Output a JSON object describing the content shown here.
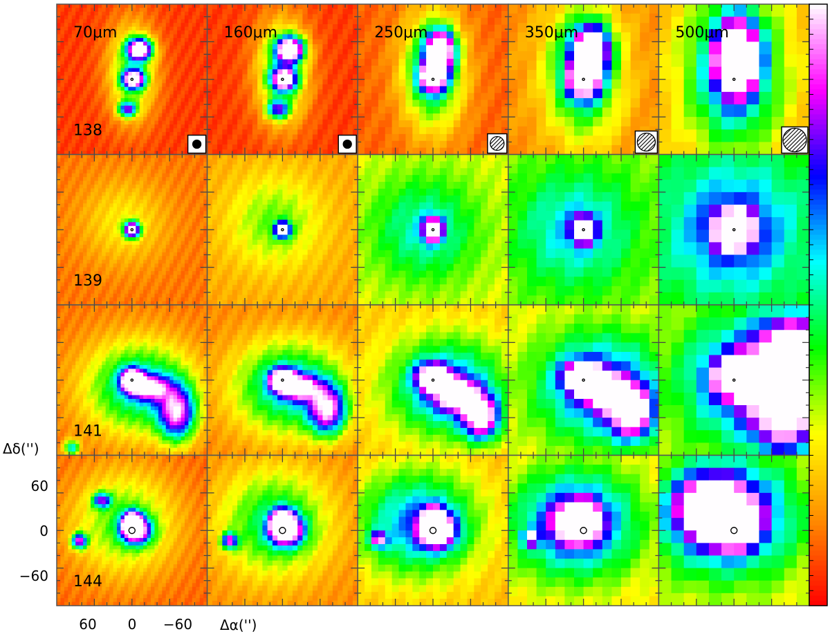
{
  "wavelengths": [
    "70μm",
    "160μm",
    "250μm",
    "350μm",
    "500μm"
  ],
  "sources": [
    "138",
    "139",
    "141",
    "144"
  ],
  "axes": {
    "xlabel": "Δα('')",
    "ylabel": "Δδ('')",
    "xticks": [
      "60",
      "0",
      "−60"
    ],
    "yticks": [
      "60",
      "0",
      "−60"
    ]
  },
  "colorbar": {
    "colors": [
      "#ff0000",
      "#ff8c00",
      "#ffff00",
      "#00ff00",
      "#00ffff",
      "#0000ff",
      "#ff00ff",
      "#ffffff"
    ]
  },
  "beam_icons": [
    "filled-circle-beam-icon",
    "filled-circle-beam-icon",
    "hatched-circle-beam-icon",
    "hatched-circle-beam-icon",
    "hatched-circle-beam-icon"
  ],
  "maps": [
    [
      {
        "bg": 0.06,
        "blobs": [
          [
            0.55,
            0.3,
            0.08,
            0.07,
            1.0
          ],
          [
            0.51,
            0.5,
            0.07,
            0.06,
            0.95
          ],
          [
            0.47,
            0.7,
            0.06,
            0.05,
            0.6
          ],
          [
            0.5,
            0.45,
            0.16,
            0.32,
            0.35
          ]
        ]
      },
      {
        "bg": 0.06,
        "blobs": [
          [
            0.55,
            0.3,
            0.09,
            0.08,
            1.0
          ],
          [
            0.51,
            0.5,
            0.08,
            0.07,
            0.9
          ],
          [
            0.47,
            0.7,
            0.07,
            0.06,
            0.55
          ],
          [
            0.5,
            0.45,
            0.17,
            0.34,
            0.4
          ]
        ]
      },
      {
        "bg": 0.1,
        "blobs": [
          [
            0.55,
            0.3,
            0.09,
            0.12,
            1.0
          ],
          [
            0.5,
            0.48,
            0.09,
            0.1,
            0.85
          ],
          [
            0.5,
            0.45,
            0.2,
            0.38,
            0.45
          ]
        ]
      },
      {
        "bg": 0.15,
        "blobs": [
          [
            0.55,
            0.3,
            0.11,
            0.14,
            1.0
          ],
          [
            0.5,
            0.5,
            0.1,
            0.12,
            0.85
          ],
          [
            0.5,
            0.45,
            0.24,
            0.42,
            0.45
          ]
        ]
      },
      {
        "bg": 0.2,
        "blobs": [
          [
            0.52,
            0.35,
            0.13,
            0.22,
            1.0
          ],
          [
            0.5,
            0.45,
            0.3,
            0.5,
            0.5
          ]
        ]
      }
    ],
    [
      {
        "bg": 0.12,
        "blobs": [
          [
            0.5,
            0.5,
            0.05,
            0.05,
            1.0
          ],
          [
            0.45,
            0.45,
            0.28,
            0.28,
            0.15
          ]
        ]
      },
      {
        "bg": 0.18,
        "blobs": [
          [
            0.5,
            0.5,
            0.05,
            0.05,
            1.0
          ],
          [
            0.45,
            0.45,
            0.3,
            0.3,
            0.2
          ]
        ]
      },
      {
        "bg": 0.3,
        "blobs": [
          [
            0.5,
            0.5,
            0.06,
            0.07,
            1.0
          ],
          [
            0.45,
            0.5,
            0.35,
            0.35,
            0.25
          ]
        ]
      },
      {
        "bg": 0.35,
        "blobs": [
          [
            0.5,
            0.5,
            0.07,
            0.08,
            1.0
          ],
          [
            0.45,
            0.5,
            0.38,
            0.38,
            0.25
          ]
        ]
      },
      {
        "bg": 0.42,
        "blobs": [
          [
            0.5,
            0.5,
            0.12,
            0.12,
            1.0
          ],
          [
            0.5,
            0.5,
            0.4,
            0.4,
            0.3
          ]
        ]
      }
    ],
    [
      {
        "bg": 0.12,
        "blobs": [
          [
            0.5,
            0.5,
            0.07,
            0.07,
            1.0
          ],
          [
            0.8,
            0.72,
            0.12,
            0.18,
            0.7
          ],
          [
            0.62,
            0.55,
            0.12,
            0.08,
            0.55
          ],
          [
            0.55,
            0.55,
            0.35,
            0.3,
            0.45
          ],
          [
            0.1,
            0.95,
            0.05,
            0.05,
            0.45
          ]
        ]
      },
      {
        "bg": 0.14,
        "blobs": [
          [
            0.5,
            0.5,
            0.08,
            0.07,
            1.0
          ],
          [
            0.8,
            0.7,
            0.12,
            0.16,
            0.7
          ],
          [
            0.62,
            0.55,
            0.12,
            0.08,
            0.6
          ],
          [
            0.55,
            0.55,
            0.36,
            0.3,
            0.45
          ]
        ]
      },
      {
        "bg": 0.22,
        "blobs": [
          [
            0.5,
            0.48,
            0.1,
            0.08,
            1.0
          ],
          [
            0.82,
            0.75,
            0.12,
            0.14,
            0.75
          ],
          [
            0.66,
            0.6,
            0.14,
            0.1,
            0.7
          ],
          [
            0.6,
            0.55,
            0.38,
            0.32,
            0.45
          ]
        ]
      },
      {
        "bg": 0.28,
        "blobs": [
          [
            0.5,
            0.48,
            0.12,
            0.09,
            1.0
          ],
          [
            0.82,
            0.72,
            0.14,
            0.16,
            0.75
          ],
          [
            0.66,
            0.58,
            0.14,
            0.1,
            0.75
          ],
          [
            0.62,
            0.55,
            0.42,
            0.36,
            0.45
          ]
        ]
      },
      {
        "bg": 0.32,
        "blobs": [
          [
            0.55,
            0.48,
            0.16,
            0.12,
            1.0
          ],
          [
            0.85,
            0.65,
            0.2,
            0.3,
            0.8
          ],
          [
            0.9,
            0.3,
            0.2,
            0.2,
            0.75
          ],
          [
            0.65,
            0.5,
            0.45,
            0.4,
            0.5
          ]
        ]
      }
    ],
    [
      {
        "bg": 0.1,
        "blobs": [
          [
            0.5,
            0.45,
            0.06,
            0.07,
            1.0
          ],
          [
            0.53,
            0.5,
            0.1,
            0.09,
            0.75
          ],
          [
            0.15,
            0.57,
            0.05,
            0.05,
            0.7
          ],
          [
            0.3,
            0.3,
            0.06,
            0.05,
            0.55
          ],
          [
            0.45,
            0.45,
            0.35,
            0.35,
            0.3
          ]
        ]
      },
      {
        "bg": 0.14,
        "blobs": [
          [
            0.5,
            0.45,
            0.07,
            0.08,
            1.0
          ],
          [
            0.53,
            0.5,
            0.11,
            0.1,
            0.75
          ],
          [
            0.15,
            0.57,
            0.05,
            0.05,
            0.65
          ],
          [
            0.45,
            0.45,
            0.36,
            0.35,
            0.35
          ]
        ]
      },
      {
        "bg": 0.2,
        "blobs": [
          [
            0.5,
            0.45,
            0.07,
            0.09,
            1.0
          ],
          [
            0.53,
            0.5,
            0.12,
            0.11,
            0.75
          ],
          [
            0.14,
            0.56,
            0.05,
            0.05,
            0.6
          ],
          [
            0.4,
            0.45,
            0.4,
            0.35,
            0.45
          ]
        ]
      },
      {
        "bg": 0.25,
        "blobs": [
          [
            0.5,
            0.43,
            0.08,
            0.1,
            1.0
          ],
          [
            0.45,
            0.45,
            0.14,
            0.12,
            0.8
          ],
          [
            0.15,
            0.55,
            0.05,
            0.05,
            0.55
          ],
          [
            0.45,
            0.45,
            0.42,
            0.36,
            0.5
          ]
        ]
      },
      {
        "bg": 0.28,
        "blobs": [
          [
            0.5,
            0.45,
            0.14,
            0.14,
            1.0
          ],
          [
            0.35,
            0.35,
            0.2,
            0.18,
            0.85
          ],
          [
            0.45,
            0.4,
            0.45,
            0.38,
            0.55
          ]
        ]
      }
    ]
  ]
}
